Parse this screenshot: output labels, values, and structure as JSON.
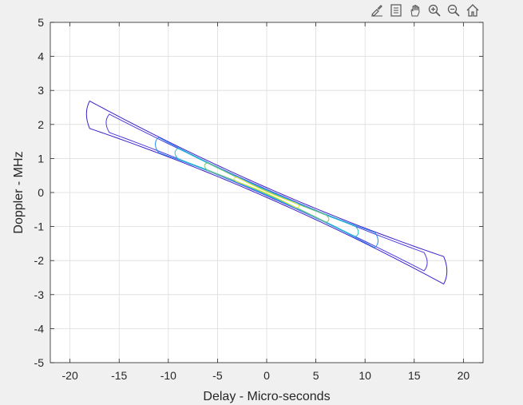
{
  "toolbar": {
    "icons": [
      "brush-icon",
      "data-tips-icon",
      "pan-hand-icon",
      "zoom-in-icon",
      "zoom-out-icon",
      "home-icon"
    ]
  },
  "chart_data": {
    "type": "contour",
    "title": "",
    "xlabel": "Delay - Micro-seconds",
    "ylabel": "Doppler - MHz",
    "xlim": [
      -22,
      22
    ],
    "ylim": [
      -5,
      5
    ],
    "xticks": [
      -20,
      -15,
      -10,
      -5,
      0,
      5,
      10,
      15,
      20
    ],
    "yticks": [
      -5,
      -4,
      -3,
      -2,
      -1,
      0,
      1,
      2,
      3,
      4,
      5
    ],
    "grid": true,
    "ridge": {
      "slope_mhz_per_us": -0.127,
      "delay_extent": [
        -18,
        18
      ],
      "doppler_extent": [
        -2.3,
        2.3
      ]
    },
    "levels": [
      {
        "color": "#3b20c8",
        "halfwidth": 0.09,
        "delay_extent": [
          -18,
          18
        ]
      },
      {
        "color": "#4a3ae0",
        "halfwidth": 0.06,
        "delay_extent": [
          -16,
          16
        ]
      },
      {
        "color": "#2c8cf0",
        "halfwidth": 0.05,
        "delay_extent": [
          -11,
          11
        ]
      },
      {
        "color": "#20c0c8",
        "halfwidth": 0.035,
        "delay_extent": [
          -9,
          9
        ]
      },
      {
        "color": "#7ac870",
        "halfwidth": 0.025,
        "delay_extent": [
          -6,
          6
        ]
      },
      {
        "color": "#e6e63c",
        "halfwidth": 0.015,
        "delay_extent": [
          -3,
          3
        ]
      }
    ]
  }
}
